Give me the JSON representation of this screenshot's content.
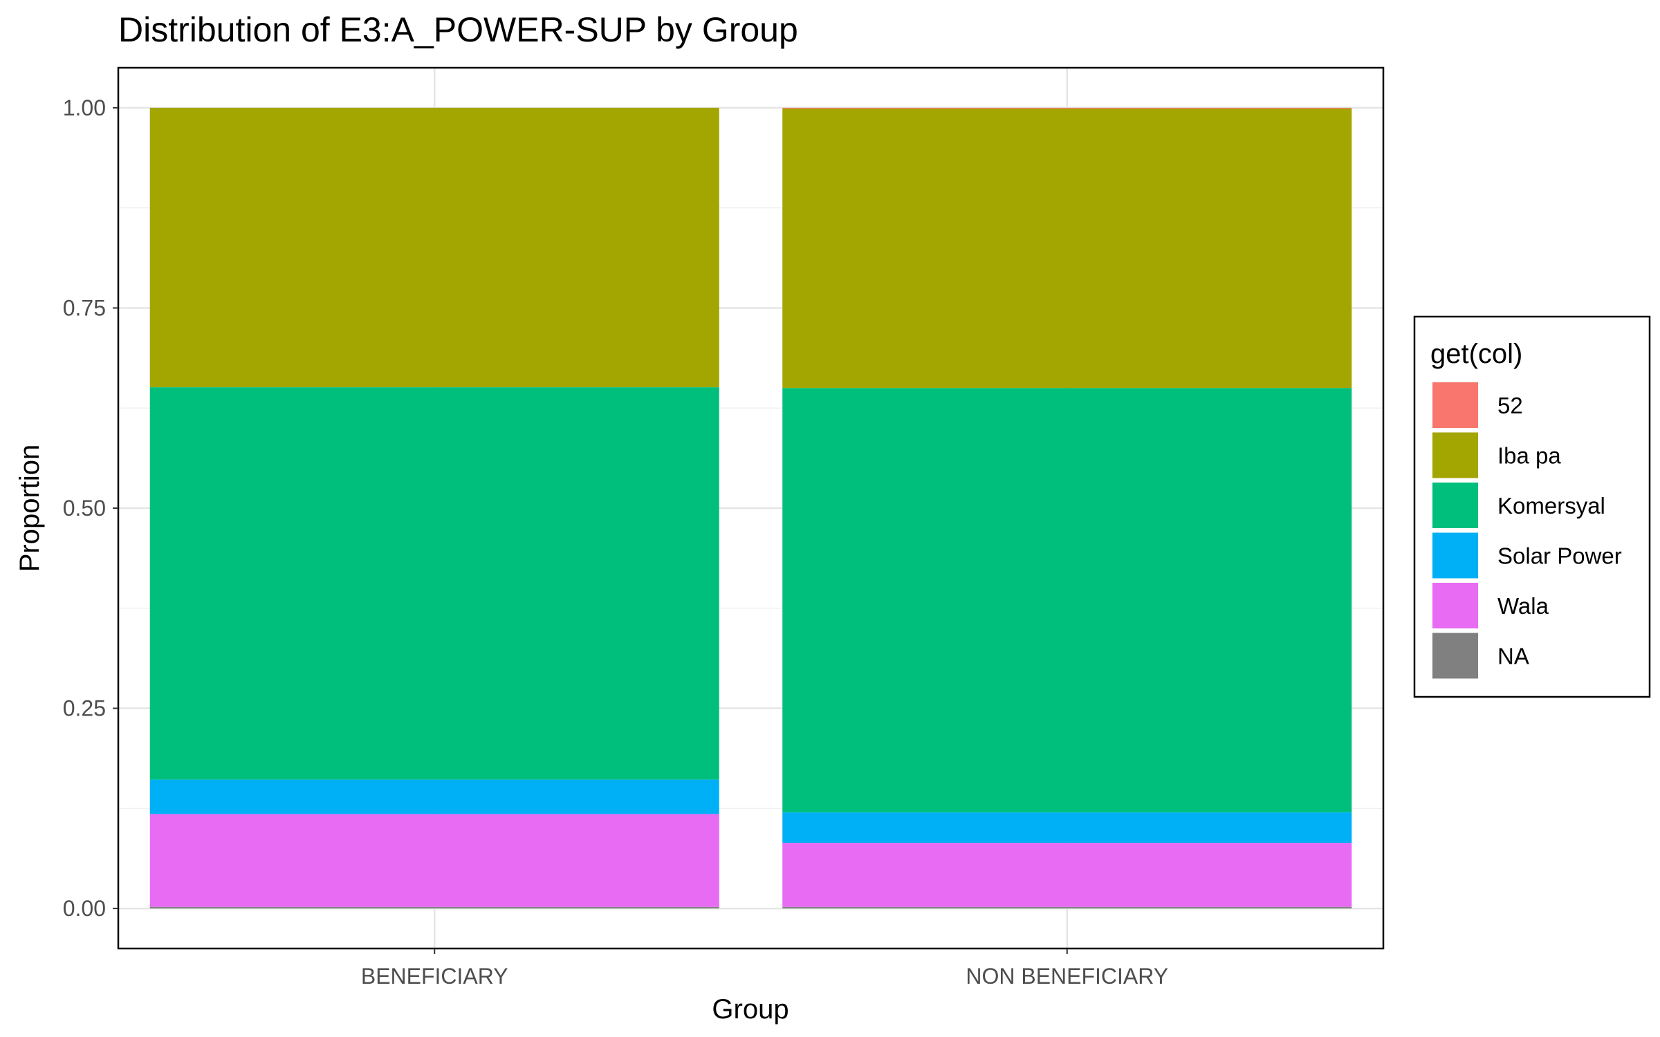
{
  "chart_data": {
    "type": "bar",
    "stacked": true,
    "title": "Distribution of E3:A_POWER-SUP by Group",
    "xlabel": "Group",
    "ylabel": "Proportion",
    "ylim": [
      -0.05,
      1.05
    ],
    "yticks": [
      "0.00",
      "0.25",
      "0.50",
      "0.75",
      "1.00"
    ],
    "yticks_values": [
      0,
      0.25,
      0.5,
      0.75,
      1.0
    ],
    "grid": true,
    "legend_position": "right",
    "legend_title": "get(col)",
    "categories": [
      "BENEFICIARY",
      "NON BENEFICIARY"
    ],
    "series": [
      {
        "name": "52",
        "color": "#F8766D",
        "values": [
          0.0,
          0.001
        ]
      },
      {
        "name": "Iba pa",
        "color": "#A3A500",
        "values": [
          0.349,
          0.349
        ]
      },
      {
        "name": "Komersyal",
        "color": "#00BF7D",
        "values": [
          0.49,
          0.53
        ]
      },
      {
        "name": "Solar Power",
        "color": "#00B0F6",
        "values": [
          0.043,
          0.038
        ]
      },
      {
        "name": "Wala",
        "color": "#E76BF3",
        "values": [
          0.116,
          0.08
        ]
      },
      {
        "name": "NA",
        "color": "#808080",
        "values": [
          0.002,
          0.002
        ]
      }
    ]
  }
}
